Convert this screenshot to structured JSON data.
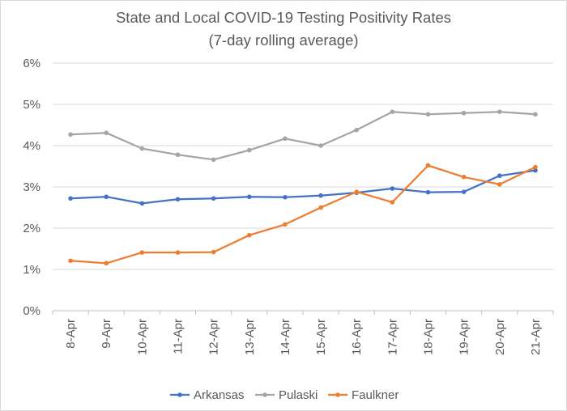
{
  "chart_data": {
    "type": "line",
    "title": "State and Local COVID-19 Testing Positivity Rates",
    "subtitle": "(7-day rolling average)",
    "xlabel": "",
    "ylabel": "",
    "ylim": [
      0,
      6
    ],
    "yticks": [
      "0%",
      "1%",
      "2%",
      "3%",
      "4%",
      "5%",
      "6%"
    ],
    "categories": [
      "8-Apr",
      "9-Apr",
      "10-Apr",
      "11-Apr",
      "12-Apr",
      "13-Apr",
      "14-Apr",
      "15-Apr",
      "16-Apr",
      "17-Apr",
      "18-Apr",
      "19-Apr",
      "20-Apr",
      "21-Apr"
    ],
    "grid": true,
    "legend_position": "bottom",
    "series": [
      {
        "name": "Arkansas",
        "color": "#4472c4",
        "values": [
          2.72,
          2.76,
          2.6,
          2.7,
          2.72,
          2.76,
          2.75,
          2.79,
          2.86,
          2.96,
          2.87,
          2.88,
          3.27,
          3.4
        ]
      },
      {
        "name": "Pulaski",
        "color": "#a5a5a5",
        "values": [
          4.27,
          4.31,
          3.93,
          3.78,
          3.66,
          3.89,
          4.17,
          4.0,
          4.38,
          4.82,
          4.76,
          4.79,
          4.82,
          4.76
        ]
      },
      {
        "name": "Faulkner",
        "color": "#ed7d31",
        "values": [
          1.21,
          1.15,
          1.41,
          1.41,
          1.42,
          1.83,
          2.09,
          2.5,
          2.88,
          2.63,
          3.52,
          3.24,
          3.06,
          3.48
        ]
      }
    ]
  }
}
